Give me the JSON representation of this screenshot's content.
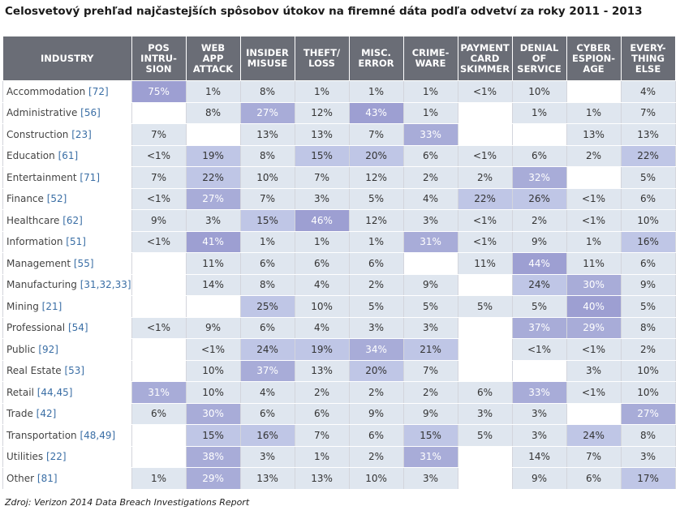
{
  "title": "Celosvetový prehľad najčastejších spôsobov útokov na firemné dáta podľa odvetví za roky 2011 - 2013",
  "source": "Zdroj: Verizon 2014 Data Breach Investigations Report",
  "colors": {
    "header_bg": "#6a6d76",
    "low": "#dfe6ef",
    "mid": "#bfc6e6",
    "high": "#a8acd8",
    "top": "#9d9fd2"
  },
  "chart_data": {
    "type": "table",
    "columns": [
      [
        "INDUSTRY"
      ],
      [
        "POS",
        "INTRU-",
        "SION"
      ],
      [
        "WEB",
        "APP",
        "ATTACK"
      ],
      [
        "INSIDER",
        "MISUSE"
      ],
      [
        "THEFT/",
        "LOSS"
      ],
      [
        "MISC.",
        "ERROR"
      ],
      [
        "CRIME-",
        "WARE"
      ],
      [
        "PAYMENT",
        "CARD",
        "SKIMMER"
      ],
      [
        "DENIAL OF",
        "SERVICE"
      ],
      [
        "CYBER",
        "ESPION-",
        "AGE"
      ],
      [
        "EVERY-",
        "THING",
        "ELSE"
      ]
    ],
    "rows": [
      {
        "industry": "Accommodation",
        "codes": "[72]",
        "values": [
          "75%",
          "1%",
          "8%",
          "1%",
          "1%",
          "1%",
          "<1%",
          "10%",
          "",
          "4%"
        ]
      },
      {
        "industry": "Administrative",
        "codes": "[56]",
        "values": [
          "",
          "8%",
          "27%",
          "12%",
          "43%",
          "1%",
          "",
          "1%",
          "1%",
          "7%"
        ]
      },
      {
        "industry": "Construction",
        "codes": "[23]",
        "values": [
          "7%",
          "",
          "13%",
          "13%",
          "7%",
          "33%",
          "",
          "",
          "13%",
          "13%"
        ]
      },
      {
        "industry": "Education",
        "codes": "[61]",
        "values": [
          "<1%",
          "19%",
          "8%",
          "15%",
          "20%",
          "6%",
          "<1%",
          "6%",
          "2%",
          "22%"
        ]
      },
      {
        "industry": "Entertainment",
        "codes": "[71]",
        "values": [
          "7%",
          "22%",
          "10%",
          "7%",
          "12%",
          "2%",
          "2%",
          "32%",
          "",
          "5%"
        ]
      },
      {
        "industry": "Finance",
        "codes": "[52]",
        "values": [
          "<1%",
          "27%",
          "7%",
          "3%",
          "5%",
          "4%",
          "22%",
          "26%",
          "<1%",
          "6%"
        ]
      },
      {
        "industry": "Healthcare",
        "codes": "[62]",
        "values": [
          "9%",
          "3%",
          "15%",
          "46%",
          "12%",
          "3%",
          "<1%",
          "2%",
          "<1%",
          "10%"
        ]
      },
      {
        "industry": "Information",
        "codes": "[51]",
        "values": [
          "<1%",
          "41%",
          "1%",
          "1%",
          "1%",
          "31%",
          "<1%",
          "9%",
          "1%",
          "16%"
        ]
      },
      {
        "industry": "Management",
        "codes": "[55]",
        "values": [
          "",
          "11%",
          "6%",
          "6%",
          "6%",
          "",
          "11%",
          "44%",
          "11%",
          "6%"
        ]
      },
      {
        "industry": "Manufacturing",
        "codes": "[31,32,33]",
        "values": [
          "",
          "14%",
          "8%",
          "4%",
          "2%",
          "9%",
          "",
          "24%",
          "30%",
          "9%"
        ]
      },
      {
        "industry": "Mining",
        "codes": "[21]",
        "values": [
          "",
          "",
          "25%",
          "10%",
          "5%",
          "5%",
          "5%",
          "5%",
          "40%",
          "5%"
        ]
      },
      {
        "industry": "Professional",
        "codes": "[54]",
        "values": [
          "<1%",
          "9%",
          "6%",
          "4%",
          "3%",
          "3%",
          "",
          "37%",
          "29%",
          "8%"
        ]
      },
      {
        "industry": "Public",
        "codes": "[92]",
        "values": [
          "",
          "<1%",
          "24%",
          "19%",
          "34%",
          "21%",
          "",
          "<1%",
          "<1%",
          "2%"
        ]
      },
      {
        "industry": "Real Estate",
        "codes": "[53]",
        "values": [
          "",
          "10%",
          "37%",
          "13%",
          "20%",
          "7%",
          "",
          "",
          "3%",
          "10%"
        ]
      },
      {
        "industry": "Retail",
        "codes": "[44,45]",
        "values": [
          "31%",
          "10%",
          "4%",
          "2%",
          "2%",
          "2%",
          "6%",
          "33%",
          "<1%",
          "10%"
        ]
      },
      {
        "industry": "Trade",
        "codes": "[42]",
        "values": [
          "6%",
          "30%",
          "6%",
          "6%",
          "9%",
          "9%",
          "3%",
          "3%",
          "",
          "27%"
        ]
      },
      {
        "industry": "Transportation",
        "codes": "[48,49]",
        "values": [
          "",
          "15%",
          "16%",
          "7%",
          "6%",
          "15%",
          "5%",
          "3%",
          "24%",
          "8%"
        ]
      },
      {
        "industry": "Utilities",
        "codes": "[22]",
        "values": [
          "",
          "38%",
          "3%",
          "1%",
          "2%",
          "31%",
          "",
          "14%",
          "7%",
          "3%"
        ]
      },
      {
        "industry": "Other",
        "codes": "[81]",
        "values": [
          "1%",
          "29%",
          "13%",
          "13%",
          "10%",
          "3%",
          "",
          "9%",
          "6%",
          "17%"
        ]
      }
    ]
  }
}
